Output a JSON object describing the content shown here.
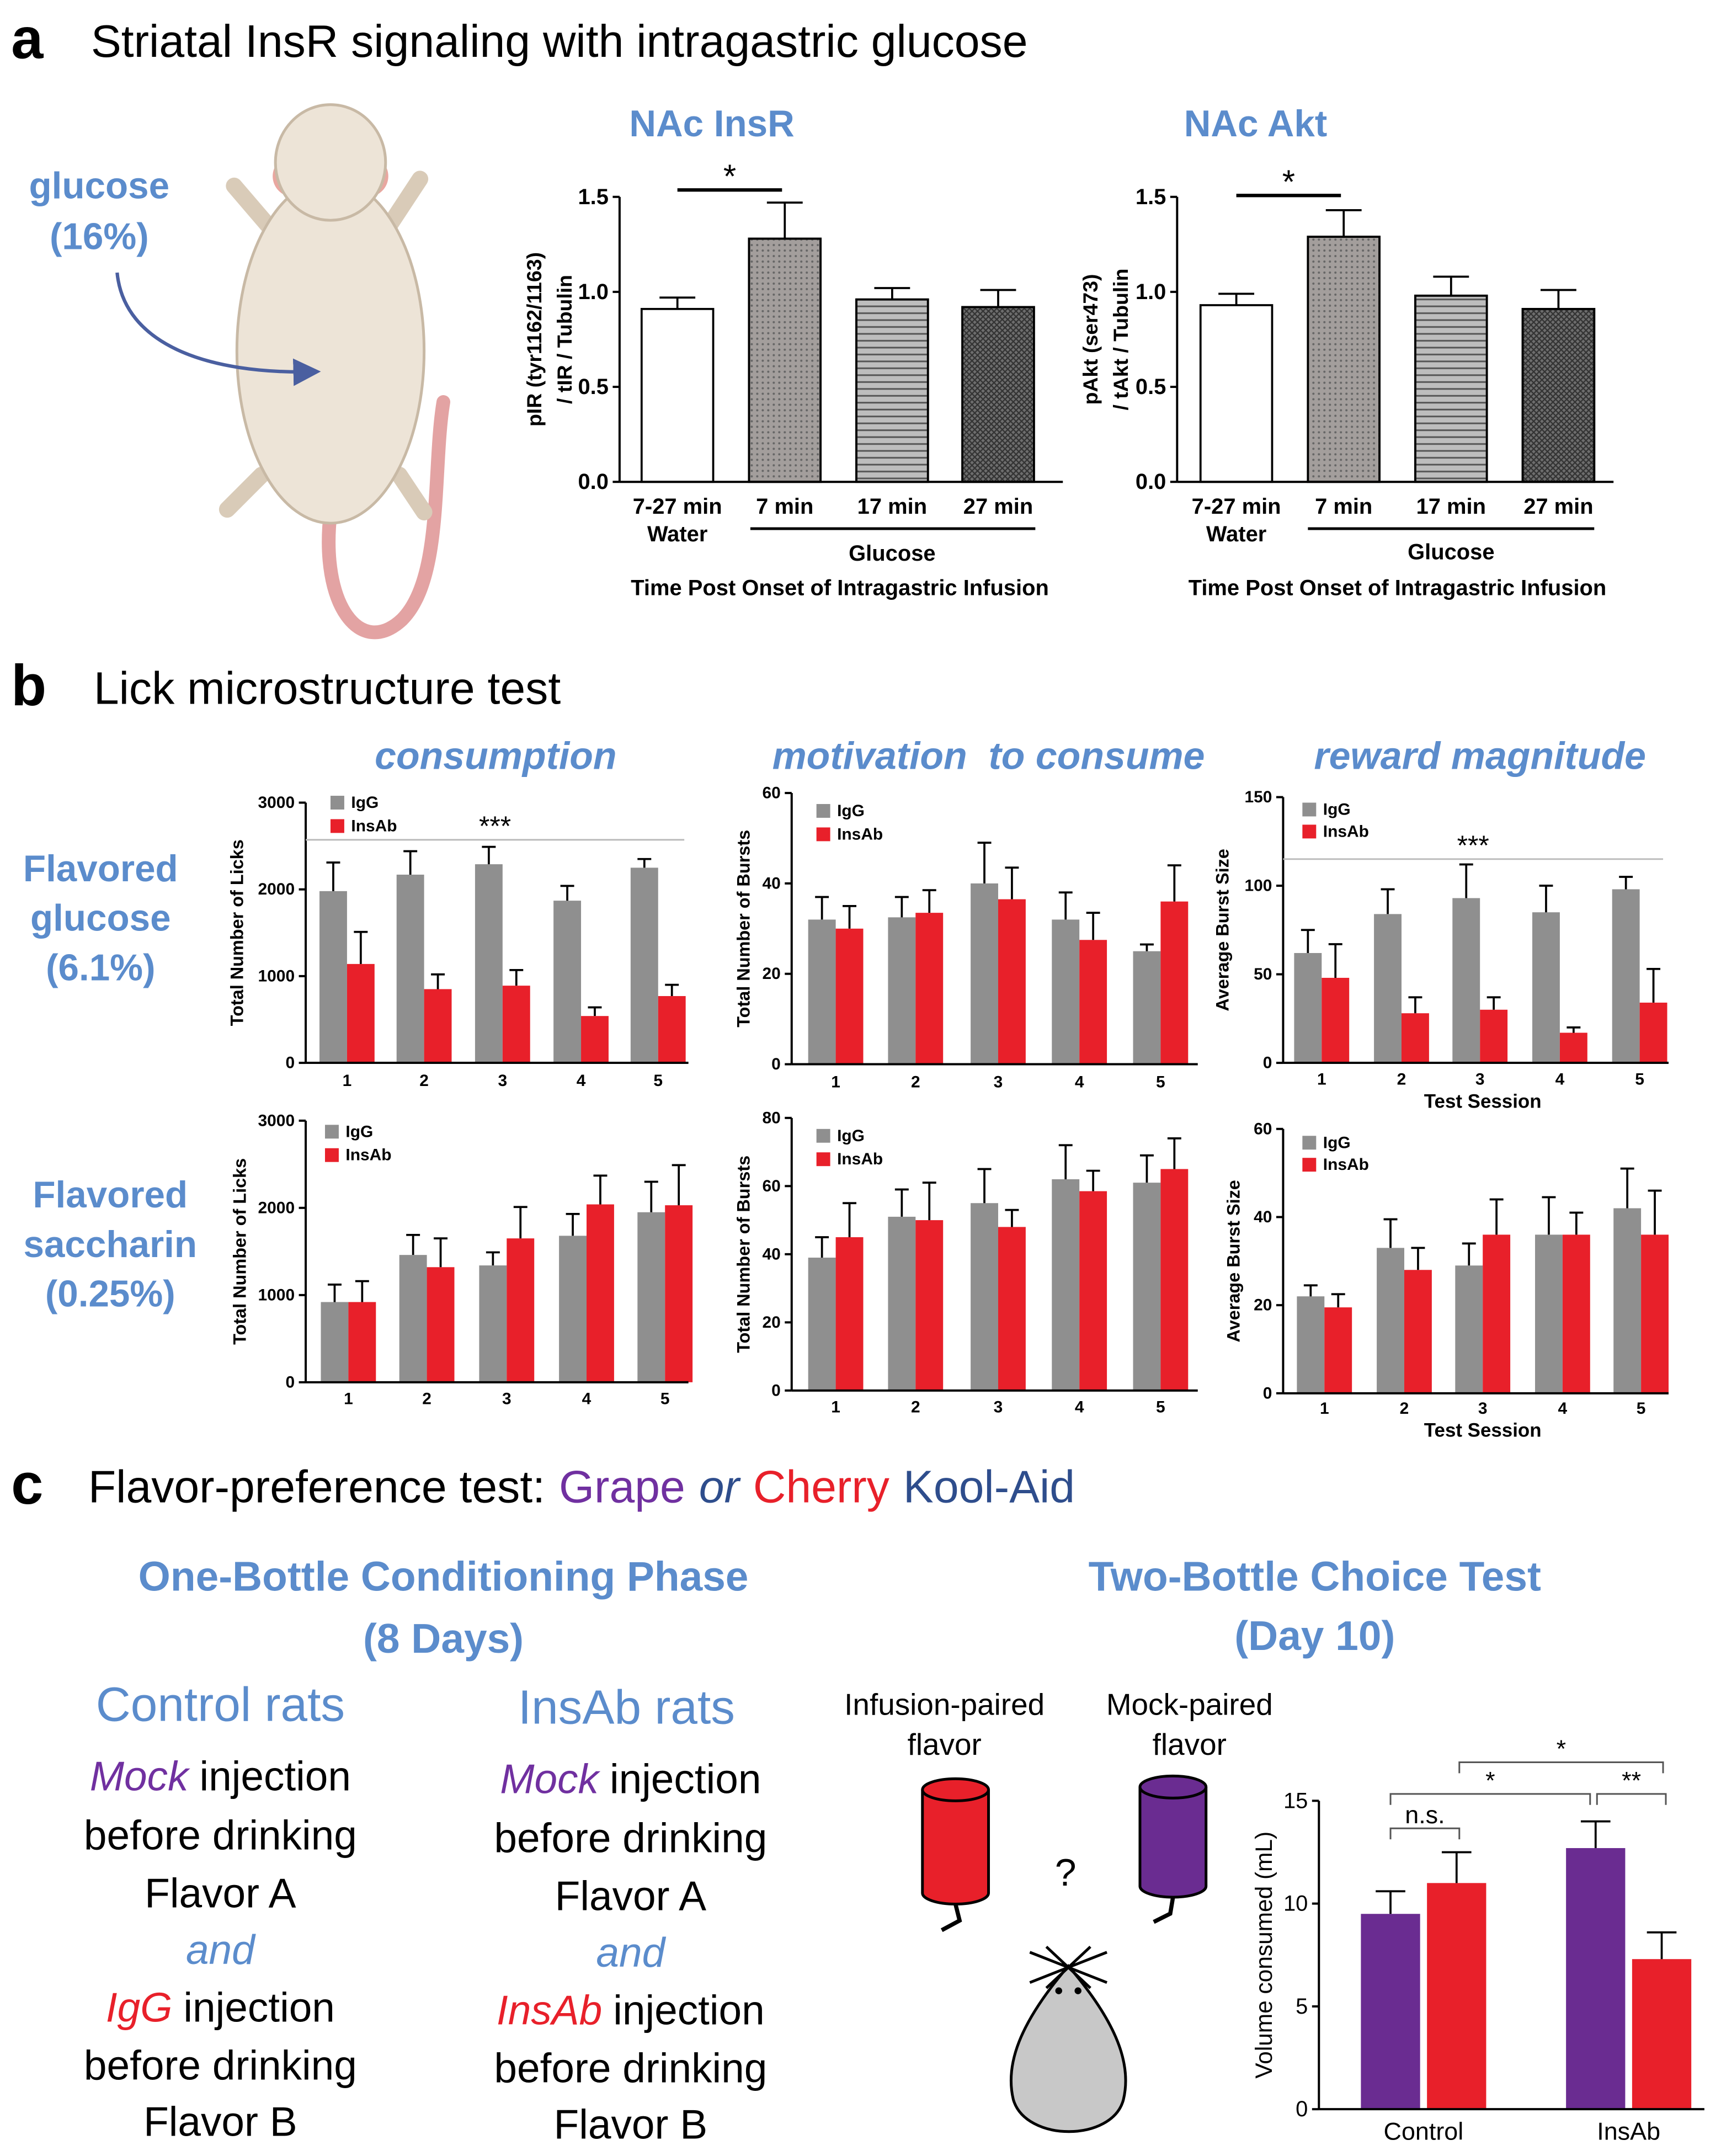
{
  "panels": {
    "a": {
      "label": "a",
      "title": "Striatal InsR signaling with intragastric glucose",
      "infusion": [
        "glucose",
        "(16%)"
      ]
    },
    "b": {
      "label": "b",
      "title": "Lick microstructure test",
      "columns": [
        "consumption",
        "motivation  to consume",
        "reward magnitude"
      ],
      "rows": [
        [
          "Flavored",
          "glucose",
          "(6.1%)"
        ],
        [
          "Flavored",
          "saccharin",
          "(0.25%)"
        ]
      ]
    },
    "c": {
      "label": "c",
      "title": [
        "Flavor-preference test:",
        "Grape",
        "or",
        "Cherry",
        "Kool-Aid"
      ],
      "conditioning": {
        "title": [
          "One-Bottle Conditioning Phase",
          "(8 Days)"
        ],
        "control": {
          "title": "Control rats",
          "lines": [
            {
              "em": "Mock",
              "rest": "injection"
            },
            "before drinking",
            "Flavor A",
            "and",
            {
              "em": "IgG",
              "rest": "injection"
            },
            "before drinking",
            "Flavor B"
          ]
        },
        "insab": {
          "title": "InsAb rats",
          "lines": [
            {
              "em": "Mock",
              "rest": "injection"
            },
            "before drinking",
            "Flavor A",
            "and",
            {
              "em": "InsAb",
              "rest": "injection"
            },
            "before drinking",
            "Flavor B"
          ]
        }
      },
      "choice": {
        "title": [
          "Two-Bottle Choice Test",
          "(Day 10)"
        ],
        "bottles": [
          [
            "Infusion-paired",
            "flavor"
          ],
          [
            "Mock-paired",
            "flavor"
          ]
        ],
        "question": "?"
      }
    }
  },
  "chart_data": [
    {
      "type": "bar",
      "title": "NAc InsR",
      "categories": [
        "7-27 min",
        "7 min",
        "17 min",
        "27 min"
      ],
      "group_labels": [
        "Water",
        "Glucose"
      ],
      "values": [
        0.91,
        1.28,
        0.96,
        0.92
      ],
      "errors": [
        0.06,
        0.19,
        0.06,
        0.09
      ],
      "colors": [
        "#ffffff",
        "#a39e9c",
        "#bdbdbd",
        "#6e6e6e"
      ],
      "ylim": [
        0,
        1.5
      ],
      "yticks": [
        {
          "value": 0,
          "label": "0.0"
        },
        {
          "value": 0.5,
          "label": "0.5"
        },
        {
          "value": 1,
          "label": "1.0"
        },
        {
          "value": 1.5,
          "label": "1.5"
        }
      ],
      "ylabel": [
        "pIR (tyr1162/1163)",
        "/ tIR / Tubulin"
      ],
      "xlabel": "Time Post Onset of Intragastric Infusion",
      "annotations": [
        "*"
      ]
    },
    {
      "type": "bar",
      "title": "NAc Akt",
      "categories": [
        "7-27 min",
        "7 min",
        "17 min",
        "27 min"
      ],
      "group_labels": [
        "Water",
        "Glucose"
      ],
      "values": [
        0.93,
        1.29,
        0.98,
        0.91
      ],
      "errors": [
        0.06,
        0.14,
        0.1,
        0.1
      ],
      "colors": [
        "#ffffff",
        "#a39e9c",
        "#bdbdbd",
        "#6e6e6e"
      ],
      "ylim": [
        0,
        1.5
      ],
      "yticks": [
        {
          "value": 0,
          "label": "0.0"
        },
        {
          "value": 0.5,
          "label": "0.5"
        },
        {
          "value": 1,
          "label": "1.0"
        },
        {
          "value": 1.5,
          "label": "1.5"
        }
      ],
      "ylabel": [
        "pAkt (ser473)",
        "/ tAkt / Tubulin"
      ],
      "xlabel": "Time Post Onset of Intragastric Infusion",
      "annotations": [
        "*"
      ]
    },
    {
      "type": "bar",
      "categories": [
        "1",
        "2",
        "3",
        "4",
        "5"
      ],
      "legend": "upper left",
      "ylim": [
        0,
        3000
      ],
      "yticks": [
        0,
        1000,
        2000,
        3000
      ],
      "ylabel": "Total Number of Licks",
      "annotations": [
        "***"
      ],
      "series": [
        {
          "name": "IgG",
          "color": "#8f8f8f",
          "values": [
            1980,
            2170,
            2290,
            1870,
            2250
          ],
          "errors": [
            330,
            270,
            200,
            170,
            100
          ]
        },
        {
          "name": "InsAb",
          "color": "#e8202a",
          "values": [
            1140,
            850,
            890,
            540,
            770
          ],
          "errors": [
            370,
            170,
            180,
            100,
            130
          ]
        }
      ]
    },
    {
      "type": "bar",
      "categories": [
        "1",
        "2",
        "3",
        "4",
        "5"
      ],
      "legend": "upper left",
      "ylim": [
        0,
        60
      ],
      "yticks": [
        0,
        20,
        40,
        60
      ],
      "ylabel": "Total Number of Bursts",
      "series": [
        {
          "name": "IgG",
          "color": "#8f8f8f",
          "values": [
            32,
            32.5,
            40,
            32,
            25
          ],
          "errors": [
            5,
            4.5,
            9,
            6,
            1.5
          ]
        },
        {
          "name": "InsAb",
          "color": "#e8202a",
          "values": [
            30,
            33.5,
            36.5,
            27.5,
            36
          ],
          "errors": [
            5,
            5,
            7,
            6,
            8
          ]
        }
      ]
    },
    {
      "type": "bar",
      "categories": [
        "1",
        "2",
        "3",
        "4",
        "5"
      ],
      "legend": "upper left",
      "ylim": [
        0,
        150
      ],
      "yticks": [
        0,
        50,
        100,
        150
      ],
      "ylabel": "Average Burst Size",
      "xlabel": "Test Session",
      "annotations": [
        "***"
      ],
      "series": [
        {
          "name": "IgG",
          "color": "#8f8f8f",
          "values": [
            62,
            84,
            93,
            85,
            98
          ],
          "errors": [
            13,
            14,
            19,
            15,
            7
          ]
        },
        {
          "name": "InsAb",
          "color": "#e8202a",
          "values": [
            48,
            28,
            30,
            17,
            34
          ],
          "errors": [
            19,
            9,
            7,
            3,
            19
          ]
        }
      ]
    },
    {
      "type": "bar",
      "categories": [
        "1",
        "2",
        "3",
        "4",
        "5"
      ],
      "legend": "upper left",
      "ylim": [
        0,
        3000
      ],
      "yticks": [
        0,
        1000,
        2000,
        3000
      ],
      "ylabel": "Total Number of Licks",
      "series": [
        {
          "name": "IgG",
          "color": "#8f8f8f",
          "values": [
            920,
            1460,
            1340,
            1680,
            1950
          ],
          "errors": [
            200,
            230,
            150,
            250,
            350
          ]
        },
        {
          "name": "InsAb",
          "color": "#e8202a",
          "values": [
            920,
            1320,
            1650,
            2040,
            2030
          ],
          "errors": [
            240,
            330,
            360,
            330,
            460
          ]
        }
      ]
    },
    {
      "type": "bar",
      "categories": [
        "1",
        "2",
        "3",
        "4",
        "5"
      ],
      "legend": "upper left",
      "ylim": [
        0,
        80
      ],
      "yticks": [
        0,
        20,
        40,
        60,
        80
      ],
      "ylabel": "Total Number of Bursts",
      "series": [
        {
          "name": "IgG",
          "color": "#8f8f8f",
          "values": [
            39,
            51,
            55,
            62,
            61
          ],
          "errors": [
            6,
            8,
            10,
            10,
            8
          ]
        },
        {
          "name": "InsAb",
          "color": "#e8202a",
          "values": [
            45,
            50,
            48,
            58.5,
            65
          ],
          "errors": [
            10,
            11,
            5,
            6,
            9
          ]
        }
      ]
    },
    {
      "type": "bar",
      "categories": [
        "1",
        "2",
        "3",
        "4",
        "5"
      ],
      "legend": "upper left",
      "ylim": [
        0,
        60
      ],
      "yticks": [
        0,
        20,
        40,
        60
      ],
      "ylabel": "Average Burst Size",
      "xlabel": "Test Session",
      "series": [
        {
          "name": "IgG",
          "color": "#8f8f8f",
          "values": [
            22,
            33,
            29,
            36,
            42
          ],
          "errors": [
            2.5,
            6.5,
            5,
            8.5,
            9
          ]
        },
        {
          "name": "InsAb",
          "color": "#e8202a",
          "values": [
            19.5,
            28,
            36,
            36,
            36
          ],
          "errors": [
            3,
            5,
            8,
            5,
            10
          ]
        }
      ]
    },
    {
      "type": "bar",
      "categories": [
        "Control",
        "InsAb"
      ],
      "ylim": [
        0,
        15
      ],
      "yticks": [
        0,
        5,
        10,
        15
      ],
      "ylabel": "Volume consumed (mL)",
      "annotations": [
        "n.s.",
        "*",
        "**",
        "*"
      ],
      "series": [
        {
          "color": "#6a2c91",
          "values": [
            9.5,
            12.7
          ],
          "errors": [
            1.1,
            1.3
          ]
        },
        {
          "color": "#e8202a",
          "values": [
            11.0,
            7.3
          ],
          "errors": [
            1.5,
            1.3
          ]
        }
      ]
    }
  ]
}
